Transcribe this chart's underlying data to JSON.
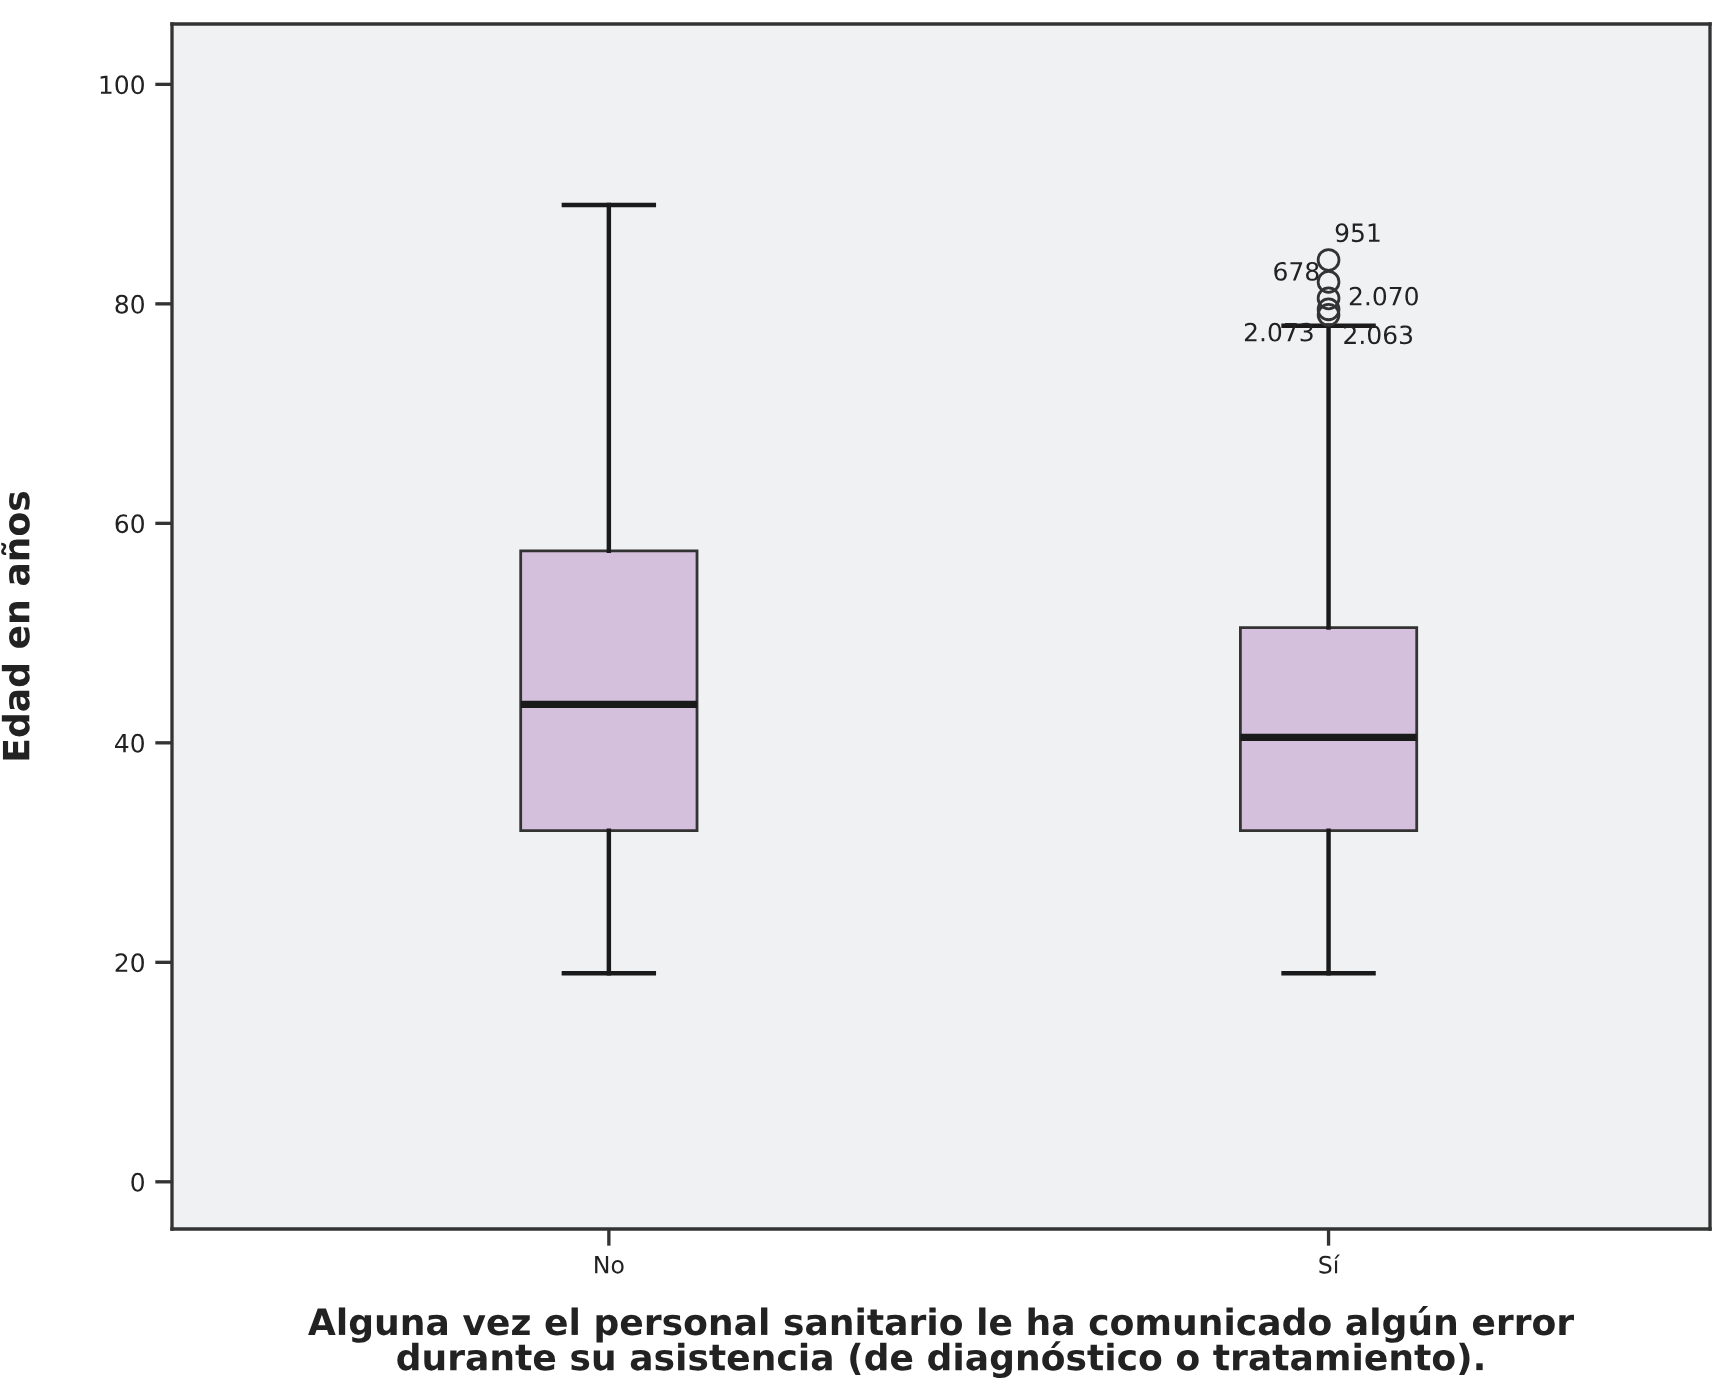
{
  "chart_data": {
    "type": "box",
    "xlabel": "Alguna vez el personal sanitario le ha comunicado algún error\ndurante su asistencia (de diagnóstico o tratamiento).",
    "ylabel": "Edad en años",
    "categories": [
      "No",
      "Sí"
    ],
    "color": "#d4bfdd",
    "boxes": [
      {
        "low": 19,
        "q1": 32,
        "median": 43.5,
        "q3": 57.5,
        "high": 89
      },
      {
        "low": 19,
        "q1": 32,
        "median": 40.5,
        "q3": 50.5,
        "high": 78,
        "outliers": [
          79,
          79.5,
          80.5,
          82,
          84
        ]
      }
    ],
    "ylim": [
      -4.3,
      105.5
    ],
    "yticks": [
      0,
      20,
      40,
      60,
      80,
      100
    ],
    "grid": false,
    "annotations": [
      "951",
      "678",
      "2.070",
      "2.073",
      "2.063"
    ]
  }
}
